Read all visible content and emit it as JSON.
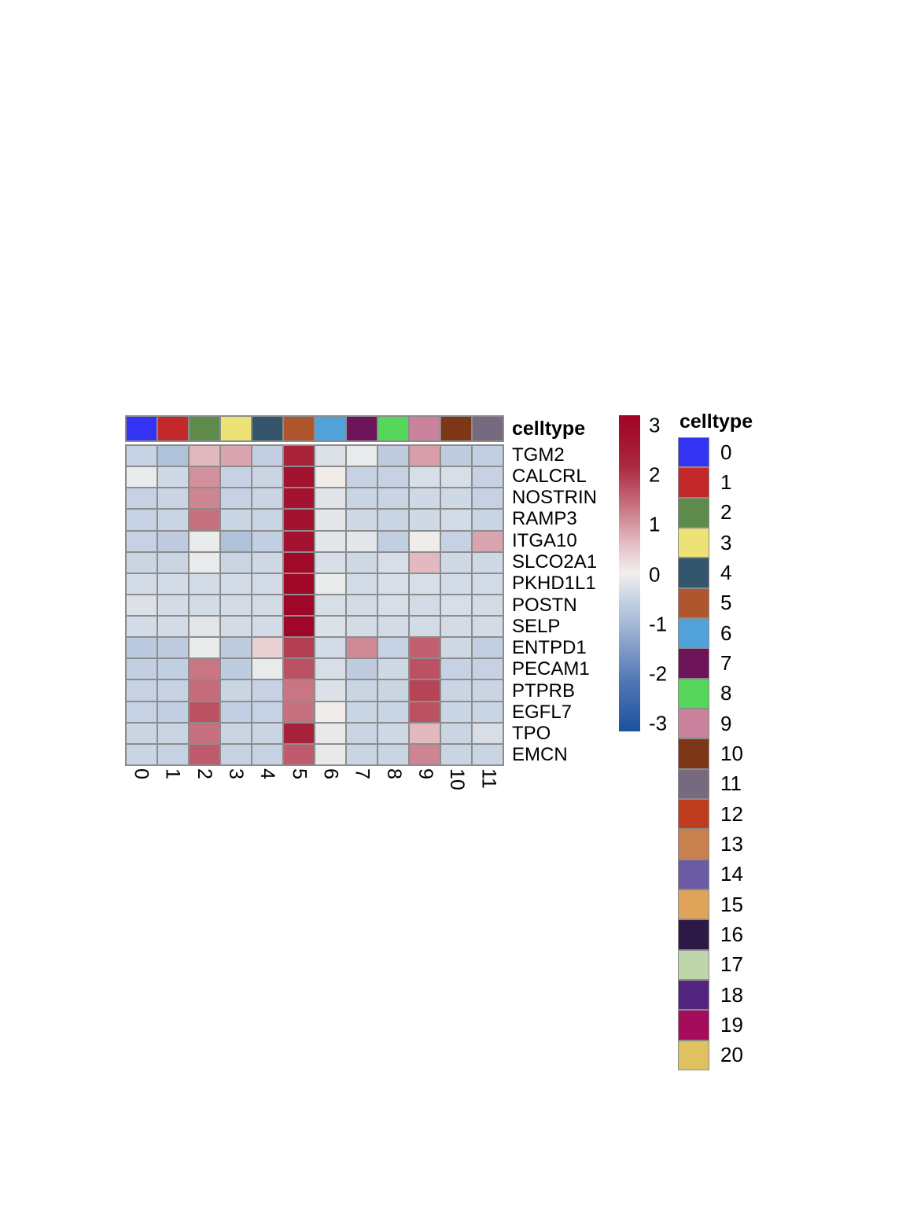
{
  "annotation": {
    "title": "celltype"
  },
  "legend": {
    "title": "celltype",
    "items": [
      {
        "label": "0",
        "color": "#3333F3"
      },
      {
        "label": "1",
        "color": "#C3292B"
      },
      {
        "label": "2",
        "color": "#5E8A4C"
      },
      {
        "label": "3",
        "color": "#EDE275"
      },
      {
        "label": "4",
        "color": "#33566D"
      },
      {
        "label": "5",
        "color": "#B0562E"
      },
      {
        "label": "6",
        "color": "#50A2D9"
      },
      {
        "label": "7",
        "color": "#6E145B"
      },
      {
        "label": "8",
        "color": "#56D65A"
      },
      {
        "label": "9",
        "color": "#C9839C"
      },
      {
        "label": "10",
        "color": "#7D3717"
      },
      {
        "label": "11",
        "color": "#756A7F"
      },
      {
        "label": "12",
        "color": "#BF3D1F"
      },
      {
        "label": "13",
        "color": "#C8804F"
      },
      {
        "label": "14",
        "color": "#6A5BA4"
      },
      {
        "label": "15",
        "color": "#DFA35A"
      },
      {
        "label": "16",
        "color": "#2C1946"
      },
      {
        "label": "17",
        "color": "#BFD6AD"
      },
      {
        "label": "18",
        "color": "#542580"
      },
      {
        "label": "19",
        "color": "#A50C5B"
      },
      {
        "label": "20",
        "color": "#DFC25F"
      }
    ]
  },
  "colorbar": {
    "ticks": [
      "3",
      "2",
      "1",
      "0",
      "-1",
      "-2",
      "-3"
    ],
    "max": 3,
    "min": -3
  },
  "chart_data": {
    "type": "heatmap",
    "rows": [
      "TGM2",
      "CALCRL",
      "NOSTRIN",
      "RAMP3",
      "ITGA10",
      "SLCO2A1",
      "PKHD1L1",
      "POSTN",
      "SELP",
      "ENTPD1",
      "PECAM1",
      "PTPRB",
      "EGFL7",
      "TPO",
      "EMCN"
    ],
    "columns": [
      "0",
      "1",
      "2",
      "3",
      "4",
      "5",
      "6",
      "7",
      "8",
      "9",
      "10",
      "11"
    ],
    "values": [
      [
        -0.5,
        -0.8,
        0.6,
        0.8,
        -0.55,
        2.2,
        -0.25,
        -0.1,
        -0.6,
        0.85,
        -0.6,
        -0.55
      ],
      [
        -0.1,
        -0.4,
        1.0,
        -0.5,
        -0.45,
        2.6,
        0.05,
        -0.5,
        -0.5,
        -0.3,
        -0.3,
        -0.5
      ],
      [
        -0.5,
        -0.45,
        1.1,
        -0.5,
        -0.45,
        2.6,
        -0.2,
        -0.45,
        -0.45,
        -0.4,
        -0.4,
        -0.5
      ],
      [
        -0.5,
        -0.45,
        1.3,
        -0.45,
        -0.45,
        2.6,
        -0.15,
        -0.4,
        -0.45,
        -0.4,
        -0.35,
        -0.45
      ],
      [
        -0.5,
        -0.6,
        -0.08,
        -0.8,
        -0.55,
        2.6,
        -0.15,
        -0.15,
        -0.55,
        0.05,
        -0.5,
        0.8
      ],
      [
        -0.45,
        -0.45,
        -0.1,
        -0.45,
        -0.4,
        2.85,
        -0.3,
        -0.4,
        -0.3,
        0.6,
        -0.4,
        -0.4
      ],
      [
        -0.35,
        -0.35,
        -0.35,
        -0.35,
        -0.35,
        2.9,
        -0.08,
        -0.35,
        -0.3,
        -0.3,
        -0.35,
        -0.35
      ],
      [
        -0.25,
        -0.35,
        -0.35,
        -0.35,
        -0.35,
        2.95,
        -0.3,
        -0.35,
        -0.3,
        -0.35,
        -0.3,
        -0.35
      ],
      [
        -0.35,
        -0.35,
        -0.18,
        -0.35,
        -0.35,
        2.95,
        -0.25,
        -0.35,
        -0.35,
        -0.35,
        -0.35,
        -0.35
      ],
      [
        -0.65,
        -0.6,
        -0.08,
        -0.6,
        0.35,
        1.8,
        -0.35,
        1.05,
        -0.5,
        1.45,
        -0.4,
        -0.55
      ],
      [
        -0.55,
        -0.55,
        1.25,
        -0.6,
        -0.1,
        1.6,
        -0.3,
        -0.6,
        -0.4,
        1.6,
        -0.5,
        -0.5
      ],
      [
        -0.5,
        -0.5,
        1.35,
        -0.45,
        -0.5,
        1.25,
        -0.25,
        -0.45,
        -0.45,
        1.75,
        -0.45,
        -0.45
      ],
      [
        -0.5,
        -0.55,
        1.6,
        -0.55,
        -0.5,
        1.3,
        0.05,
        -0.45,
        -0.45,
        1.6,
        -0.45,
        -0.45
      ],
      [
        -0.45,
        -0.45,
        1.3,
        -0.45,
        -0.45,
        2.25,
        -0.12,
        -0.45,
        -0.4,
        0.6,
        -0.45,
        -0.3
      ],
      [
        -0.45,
        -0.5,
        1.5,
        -0.5,
        -0.5,
        1.5,
        -0.12,
        -0.45,
        -0.45,
        1.1,
        -0.45,
        -0.45
      ]
    ],
    "value_range": [
      -3,
      3
    ],
    "colormap_stops": [
      [
        -3,
        "#1D519F"
      ],
      [
        -2,
        "#5379B4"
      ],
      [
        -1.5,
        "#7B97C5"
      ],
      [
        -1,
        "#A2B6D4"
      ],
      [
        -0.5,
        "#C6D2E3"
      ],
      [
        0,
        "#F1F0ED"
      ],
      [
        0.5,
        "#E7C3C9"
      ],
      [
        1,
        "#D28F9C"
      ],
      [
        1.5,
        "#BF5B6C"
      ],
      [
        2,
        "#AC2C42"
      ],
      [
        2.5,
        "#A41531"
      ],
      [
        3,
        "#A00426"
      ]
    ],
    "grid_color": "#8C8C8C",
    "column_annotation": {
      "name": "celltype",
      "colors": [
        "#3333F3",
        "#C3292B",
        "#5E8A4C",
        "#EDE275",
        "#33566D",
        "#B0562E",
        "#50A2D9",
        "#6E145B",
        "#56D65A",
        "#C9839C",
        "#7D3717",
        "#756A7F"
      ]
    }
  }
}
